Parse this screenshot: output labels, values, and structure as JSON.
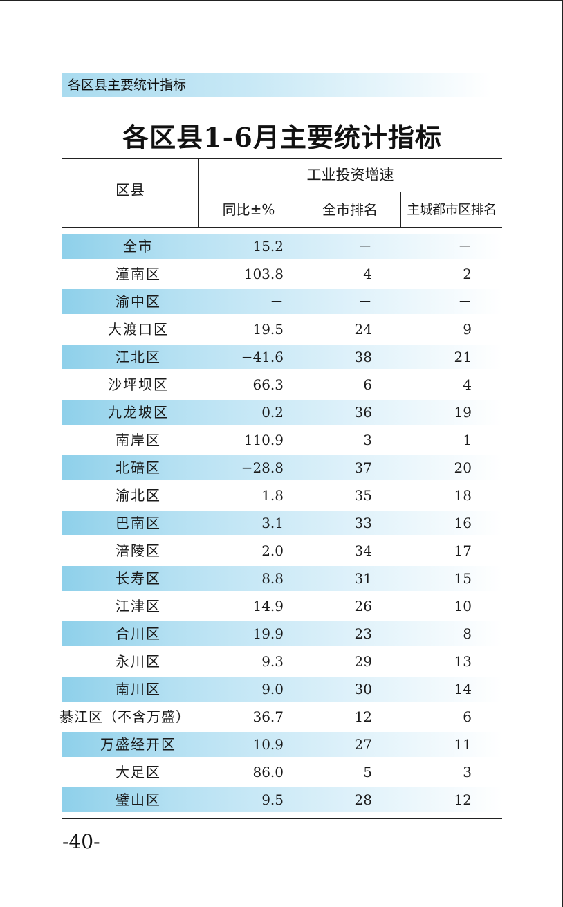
{
  "section_banner": "各区县主要统计指标",
  "title": "各区县1-6月主要统计指标",
  "table": {
    "col_region": "区县",
    "col_group": "工业投资增速",
    "col_yoy": "同比±%",
    "col_city_rank": "全市排名",
    "col_main_rank": "主城都市区排名",
    "rows": [
      {
        "name": "全市",
        "yoy": "15.2",
        "city": "－",
        "main": "－",
        "shaded": true
      },
      {
        "name": "潼南区",
        "yoy": "103.8",
        "city": "4",
        "main": "2",
        "shaded": false
      },
      {
        "name": "渝中区",
        "yoy": "－",
        "city": "－",
        "main": "－",
        "shaded": true
      },
      {
        "name": "大渡口区",
        "yoy": "19.5",
        "city": "24",
        "main": "9",
        "shaded": false
      },
      {
        "name": "江北区",
        "yoy": "−41.6",
        "city": "38",
        "main": "21",
        "shaded": true
      },
      {
        "name": "沙坪坝区",
        "yoy": "66.3",
        "city": "6",
        "main": "4",
        "shaded": false
      },
      {
        "name": "九龙坡区",
        "yoy": "0.2",
        "city": "36",
        "main": "19",
        "shaded": true
      },
      {
        "name": "南岸区",
        "yoy": "110.9",
        "city": "3",
        "main": "1",
        "shaded": false
      },
      {
        "name": "北碚区",
        "yoy": "−28.8",
        "city": "37",
        "main": "20",
        "shaded": true
      },
      {
        "name": "渝北区",
        "yoy": "1.8",
        "city": "35",
        "main": "18",
        "shaded": false
      },
      {
        "name": "巴南区",
        "yoy": "3.1",
        "city": "33",
        "main": "16",
        "shaded": true
      },
      {
        "name": "涪陵区",
        "yoy": "2.0",
        "city": "34",
        "main": "17",
        "shaded": false
      },
      {
        "name": "长寿区",
        "yoy": "8.8",
        "city": "31",
        "main": "15",
        "shaded": true
      },
      {
        "name": "江津区",
        "yoy": "14.9",
        "city": "26",
        "main": "10",
        "shaded": false
      },
      {
        "name": "合川区",
        "yoy": "19.9",
        "city": "23",
        "main": "8",
        "shaded": true
      },
      {
        "name": "永川区",
        "yoy": "9.3",
        "city": "29",
        "main": "13",
        "shaded": false
      },
      {
        "name": "南川区",
        "yoy": "9.0",
        "city": "30",
        "main": "14",
        "shaded": true
      },
      {
        "name": "綦江区（不含万盛）",
        "yoy": "36.7",
        "city": "12",
        "main": "6",
        "shaded": false,
        "wide": true
      },
      {
        "name": "万盛经开区",
        "yoy": "10.9",
        "city": "27",
        "main": "11",
        "shaded": true
      },
      {
        "name": "大足区",
        "yoy": "86.0",
        "city": "5",
        "main": "3",
        "shaded": false
      },
      {
        "name": "璧山区",
        "yoy": "9.5",
        "city": "28",
        "main": "12",
        "shaded": true
      }
    ]
  },
  "page_number": "-40-"
}
